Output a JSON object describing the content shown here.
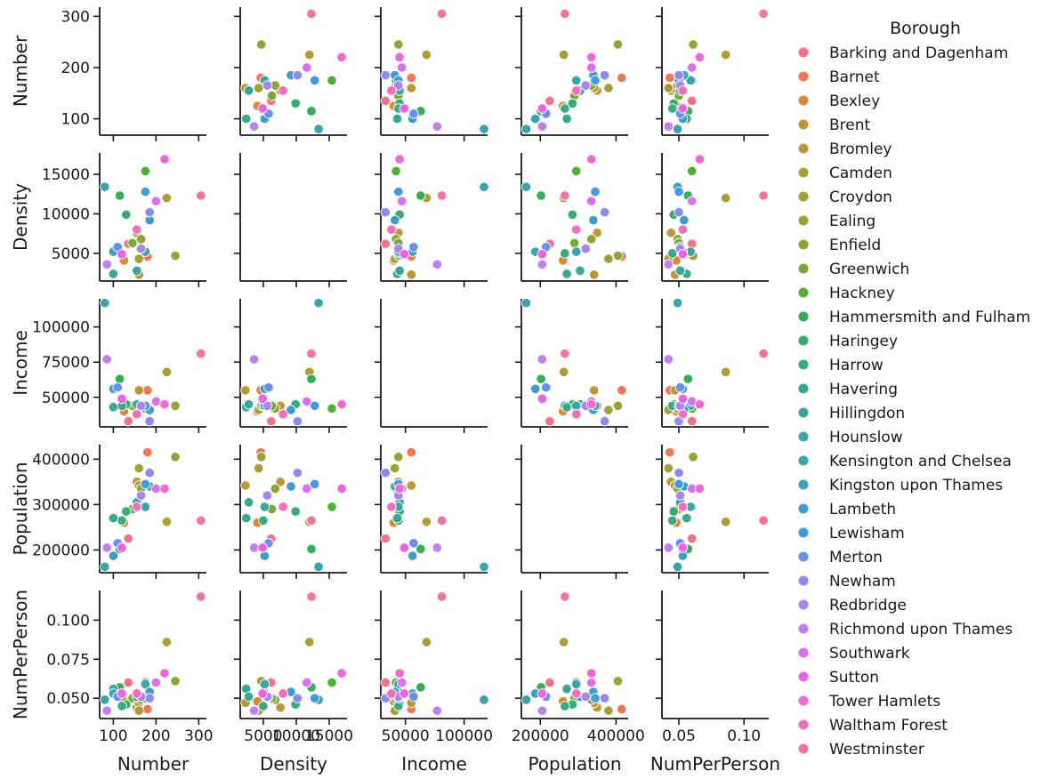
{
  "chart_data": {
    "type": "scatter",
    "kind": "pairplot",
    "legend": {
      "title": "Borough",
      "placement": "right"
    },
    "variables": [
      {
        "name": "Number",
        "ticks": [
          100,
          200,
          300
        ],
        "tick_labels": [
          "100",
          "200",
          "300"
        ],
        "lim": [
          68,
          318
        ]
      },
      {
        "name": "Density",
        "ticks": [
          5000,
          10000,
          15000
        ],
        "tick_labels": [
          "5000",
          "10000",
          "15000"
        ],
        "lim": [
          1500,
          17700
        ]
      },
      {
        "name": "Income",
        "ticks": [
          50000,
          75000,
          100000
        ],
        "tick_labels": [
          "50000",
          "75000",
          "100000"
        ],
        "x_ticks": [
          50000,
          100000
        ],
        "x_tick_labels": [
          "50000",
          "100000"
        ],
        "lim": [
          29000,
          120000
        ]
      },
      {
        "name": "Population",
        "ticks": [
          200000,
          300000,
          400000
        ],
        "tick_labels": [
          "200000",
          "300000",
          "400000"
        ],
        "x_ticks": [
          200000,
          400000
        ],
        "x_tick_labels": [
          "200000",
          "400000"
        ],
        "lim": [
          150000,
          432000
        ]
      },
      {
        "name": "NumPerPerson",
        "ticks": [
          0.05,
          0.075,
          0.1
        ],
        "tick_labels": [
          "0.050",
          "0.075",
          "0.100"
        ],
        "x_ticks": [
          0.05,
          0.1
        ],
        "x_tick_labels": [
          "0.05",
          "0.10"
        ],
        "lim": [
          0.037,
          0.119
        ]
      }
    ],
    "series": [
      {
        "name": "Barking and Dagenham",
        "color": "#f77189",
        "values": {
          "Number": 135,
          "Density": 6200,
          "Income": 33000,
          "Population": 225000,
          "NumPerPerson": 0.06
        }
      },
      {
        "name": "Barnet",
        "color": "#f7754f",
        "values": {
          "Number": 180,
          "Density": 4600,
          "Income": 55000,
          "Population": 415000,
          "NumPerPerson": 0.043
        }
      },
      {
        "name": "Bexley",
        "color": "#dc8932",
        "values": {
          "Number": 125,
          "Density": 4100,
          "Income": 40000,
          "Population": 260000,
          "NumPerPerson": 0.048
        }
      },
      {
        "name": "Brent",
        "color": "#c39532",
        "values": {
          "Number": 155,
          "Density": 7600,
          "Income": 44000,
          "Population": 350000,
          "NumPerPerson": 0.044
        }
      },
      {
        "name": "Bromley",
        "color": "#bb9832",
        "values": {
          "Number": 160,
          "Density": 2300,
          "Income": 55000,
          "Population": 342000,
          "NumPerPerson": 0.047
        }
      },
      {
        "name": "Camden",
        "color": "#ae9d31",
        "values": {
          "Number": 225,
          "Density": 12000,
          "Income": 68000,
          "Population": 262000,
          "NumPerPerson": 0.086
        }
      },
      {
        "name": "Croydon",
        "color": "#a3a031",
        "values": {
          "Number": 160,
          "Density": 4300,
          "Income": 41000,
          "Population": 380000,
          "NumPerPerson": 0.042
        }
      },
      {
        "name": "Ealing",
        "color": "#9aa232",
        "values": {
          "Number": 245,
          "Density": 4700,
          "Income": 44000,
          "Population": 405000,
          "NumPerPerson": 0.061
        }
      },
      {
        "name": "Enfield",
        "color": "#8ea531",
        "values": {
          "Number": 165,
          "Density": 6800,
          "Income": 42000,
          "Population": 335000,
          "NumPerPerson": 0.049
        }
      },
      {
        "name": "Greenwich",
        "color": "#77ab31",
        "values": {
          "Number": 145,
          "Density": 6300,
          "Income": 44000,
          "Population": 290000,
          "NumPerPerson": 0.05
        }
      },
      {
        "name": "Hackney",
        "color": "#50b131",
        "values": {
          "Number": 175,
          "Density": 15400,
          "Income": 42000,
          "Population": 295000,
          "NumPerPerson": 0.06
        }
      },
      {
        "name": "Hammersmith and Fulham",
        "color": "#33b04f",
        "values": {
          "Number": 115,
          "Density": 12300,
          "Income": 63000,
          "Population": 202000,
          "NumPerPerson": 0.057
        }
      },
      {
        "name": "Haringey",
        "color": "#34ae6f",
        "values": {
          "Number": 130,
          "Density": 9900,
          "Income": 45000,
          "Population": 285000,
          "NumPerPerson": 0.046
        }
      },
      {
        "name": "Harrow",
        "color": "#35ac82",
        "values": {
          "Number": 120,
          "Density": 5000,
          "Income": 44000,
          "Population": 265000,
          "NumPerPerson": 0.045
        }
      },
      {
        "name": "Havering",
        "color": "#35aa8e",
        "values": {
          "Number": 100,
          "Density": 2400,
          "Income": 43000,
          "Population": 270000,
          "NumPerPerson": 0.056
        }
      },
      {
        "name": "Hillingdon",
        "color": "#36a899",
        "values": {
          "Number": 155,
          "Density": 2800,
          "Income": 45000,
          "Population": 305000,
          "NumPerPerson": 0.051
        }
      },
      {
        "name": "Hounslow",
        "color": "#37a6a4",
        "values": {
          "Number": 175,
          "Density": 5200,
          "Income": 44000,
          "Population": 295000,
          "NumPerPerson": 0.059
        }
      },
      {
        "name": "Kensington and Chelsea",
        "color": "#38a4b0",
        "values": {
          "Number": 80,
          "Density": 13400,
          "Income": 117000,
          "Population": 163000,
          "NumPerPerson": 0.049
        }
      },
      {
        "name": "Kingston upon Thames",
        "color": "#39a2be",
        "values": {
          "Number": 100,
          "Density": 5200,
          "Income": 56000,
          "Population": 187000,
          "NumPerPerson": 0.053
        }
      },
      {
        "name": "Lambeth",
        "color": "#3a9fcf",
        "values": {
          "Number": 185,
          "Density": 9200,
          "Income": 41000,
          "Population": 340000,
          "NumPerPerson": 0.054
        }
      },
      {
        "name": "Lewisham",
        "color": "#3e9be5",
        "values": {
          "Number": 175,
          "Density": 12800,
          "Income": 44000,
          "Population": 345000,
          "NumPerPerson": 0.05
        }
      },
      {
        "name": "Merton",
        "color": "#6690f4",
        "values": {
          "Number": 110,
          "Density": 5800,
          "Income": 57000,
          "Population": 215000,
          "NumPerPerson": 0.051
        }
      },
      {
        "name": "Newham",
        "color": "#8e8af4",
        "values": {
          "Number": 185,
          "Density": 10200,
          "Income": 33000,
          "Population": 370000,
          "NumPerPerson": 0.05
        }
      },
      {
        "name": "Redbridge",
        "color": "#a984f4",
        "values": {
          "Number": 165,
          "Density": 5600,
          "Income": 44000,
          "Population": 320000,
          "NumPerPerson": 0.051
        }
      },
      {
        "name": "Richmond upon Thames",
        "color": "#c27ef4",
        "values": {
          "Number": 85,
          "Density": 3600,
          "Income": 77000,
          "Population": 205000,
          "NumPerPerson": 0.042
        }
      },
      {
        "name": "Southwark",
        "color": "#dd70f2",
        "values": {
          "Number": 200,
          "Density": 11600,
          "Income": 47000,
          "Population": 335000,
          "NumPerPerson": 0.06
        }
      },
      {
        "name": "Sutton",
        "color": "#f161e8",
        "values": {
          "Number": 120,
          "Density": 4900,
          "Income": 49000,
          "Population": 205000,
          "NumPerPerson": 0.053
        }
      },
      {
        "name": "Tower Hamlets",
        "color": "#f566d6",
        "values": {
          "Number": 220,
          "Density": 16900,
          "Income": 45000,
          "Population": 335000,
          "NumPerPerson": 0.066
        }
      },
      {
        "name": "Waltham Forest",
        "color": "#f66dbe",
        "values": {
          "Number": 155,
          "Density": 8000,
          "Income": 38000,
          "Population": 295000,
          "NumPerPerson": 0.053
        }
      },
      {
        "name": "Westminster",
        "color": "#f772a3",
        "values": {
          "Number": 305,
          "Density": 12300,
          "Income": 81000,
          "Population": 265000,
          "NumPerPerson": 0.115
        }
      }
    ]
  }
}
